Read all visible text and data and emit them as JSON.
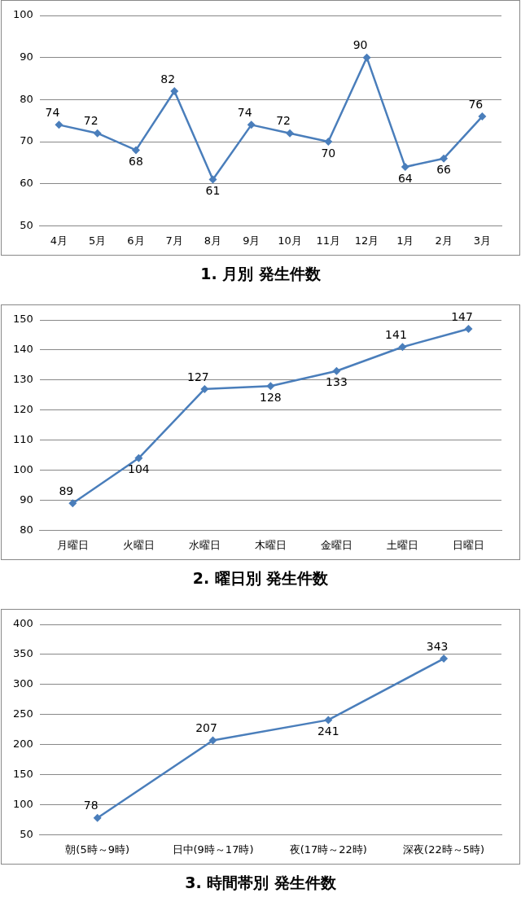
{
  "chart_data": [
    {
      "type": "line",
      "title": "1. 月別 発生件数",
      "categories": [
        "4月",
        "5月",
        "6月",
        "7月",
        "8月",
        "9月",
        "10月",
        "11月",
        "12月",
        "1月",
        "2月",
        "3月"
      ],
      "series": [
        {
          "color": "#4a7ebb",
          "values": [
            74,
            72,
            68,
            82,
            61,
            74,
            72,
            70,
            90,
            64,
            66,
            76
          ]
        }
      ],
      "ylim": [
        50,
        100
      ],
      "yticks": [
        50,
        60,
        70,
        80,
        90,
        100
      ],
      "grid": "y",
      "marker": "diamond",
      "line_style": "solid",
      "data_labels": true
    },
    {
      "type": "line",
      "title": "2. 曜日別 発生件数",
      "categories": [
        "月曜日",
        "火曜日",
        "水曜日",
        "木曜日",
        "金曜日",
        "土曜日",
        "日曜日"
      ],
      "series": [
        {
          "color": "#4a7ebb",
          "values": [
            89,
            104,
            127,
            128,
            133,
            141,
            147
          ]
        }
      ],
      "ylim": [
        80,
        150
      ],
      "yticks": [
        80,
        90,
        100,
        110,
        120,
        130,
        140,
        150
      ],
      "grid": "y",
      "marker": "diamond",
      "line_style": "solid",
      "data_labels": true
    },
    {
      "type": "line",
      "title": "3. 時間帯別 発生件数",
      "categories": [
        "朝(5時～9時)",
        "日中(9時～17時)",
        "夜(17時～22時)",
        "深夜(22時～5時)"
      ],
      "series": [
        {
          "color": "#4a7ebb",
          "values": [
            78,
            207,
            241,
            343
          ]
        }
      ],
      "ylim": [
        50,
        400
      ],
      "yticks": [
        50,
        100,
        150,
        200,
        250,
        300,
        350,
        400
      ],
      "grid": "y",
      "marker": "diamond",
      "line_style": "solid",
      "data_labels": true
    }
  ]
}
